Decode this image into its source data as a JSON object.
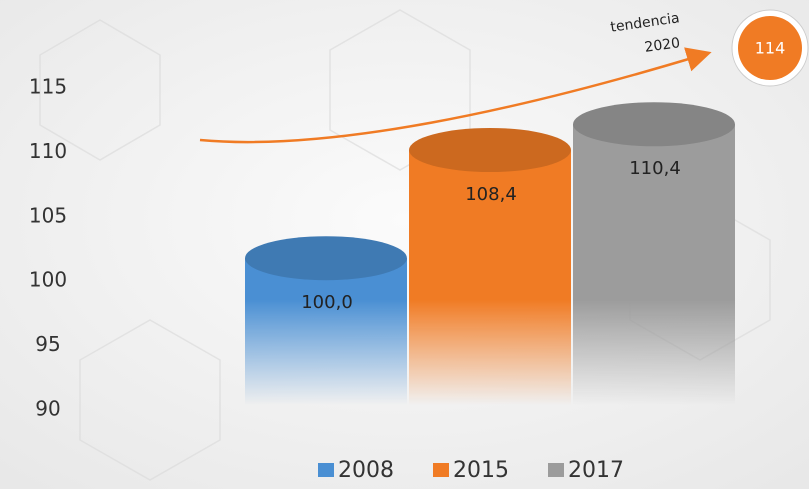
{
  "chart_data": {
    "type": "cylinder",
    "categories": [
      null
    ],
    "series": [
      {
        "name": "2008",
        "color": "#4a8fd3",
        "values": [
          100.0
        ],
        "value_labels": [
          "100,0"
        ]
      },
      {
        "name": "2015",
        "color": "#f07b24",
        "values": [
          108.4
        ],
        "value_labels": [
          "108,4"
        ]
      },
      {
        "name": "2017",
        "color": "#9c9c9c",
        "values": [
          110.4
        ],
        "value_labels": [
          "110,4"
        ]
      }
    ],
    "ylim": [
      90,
      115
    ],
    "yticks": [
      90,
      95,
      100,
      105,
      110,
      115
    ],
    "trend": {
      "label": [
        "tendencia",
        "2020"
      ],
      "value": 114,
      "color": "#f07b24"
    },
    "legend": "bottom"
  }
}
